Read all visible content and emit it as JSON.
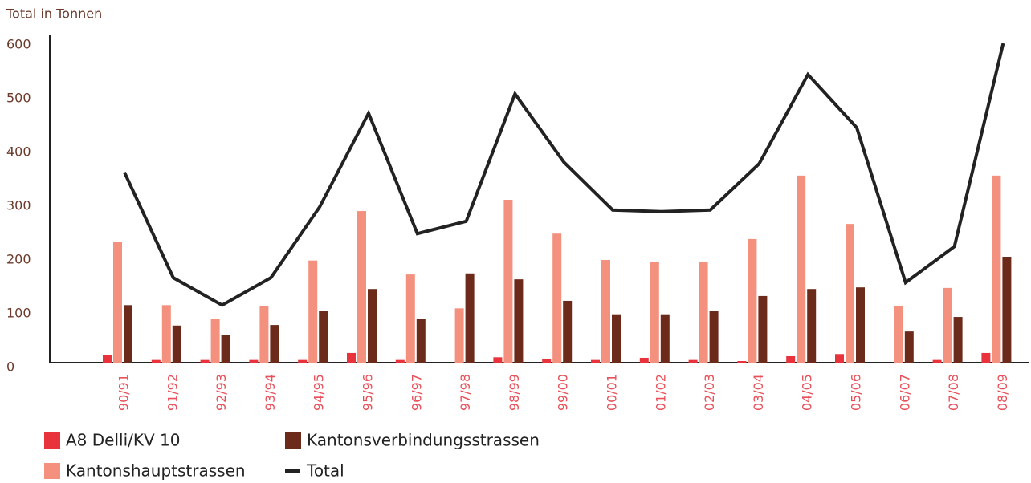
{
  "chart_data": {
    "type": "bar",
    "y_label": "Total in Tonnen",
    "categories": [
      "90/91",
      "91/92",
      "92/93",
      "93/94",
      "94/95",
      "95/96",
      "96/97",
      "97/98",
      "98/99",
      "99/00",
      "00/01",
      "01/02",
      "02/03",
      "03/04",
      "04/05",
      "05/06",
      "06/07",
      "07/08",
      "08/09"
    ],
    "series": [
      {
        "name": "A8 Delli/KV 10",
        "color": "#e8323c",
        "values": [
          14,
          5,
          5,
          5,
          5,
          18,
          5,
          0,
          10,
          7,
          5,
          9,
          5,
          3,
          12,
          16,
          0,
          5,
          18
        ]
      },
      {
        "name": "Kantonshauptstrassen",
        "color": "#f4907e",
        "values": [
          224,
          107,
          82,
          106,
          190,
          282,
          164,
          101,
          303,
          240,
          191,
          187,
          187,
          230,
          348,
          258,
          106,
          139,
          348
        ]
      },
      {
        "name": "Kantonsverbindungsstrassen",
        "color": "#6b2a1a",
        "values": [
          107,
          69,
          52,
          70,
          96,
          137,
          82,
          166,
          155,
          115,
          90,
          90,
          96,
          124,
          137,
          140,
          58,
          85,
          197
        ]
      },
      {
        "name": "Total",
        "type": "line",
        "color": "#222222",
        "values": [
          354,
          158,
          107,
          158,
          290,
          464,
          240,
          263,
          500,
          373,
          284,
          281,
          284,
          370,
          536,
          437,
          149,
          216,
          594
        ]
      }
    ],
    "ylim": [
      0,
      600
    ],
    "yticks": [
      0,
      100,
      200,
      300,
      400,
      500,
      600
    ],
    "grid": false
  }
}
